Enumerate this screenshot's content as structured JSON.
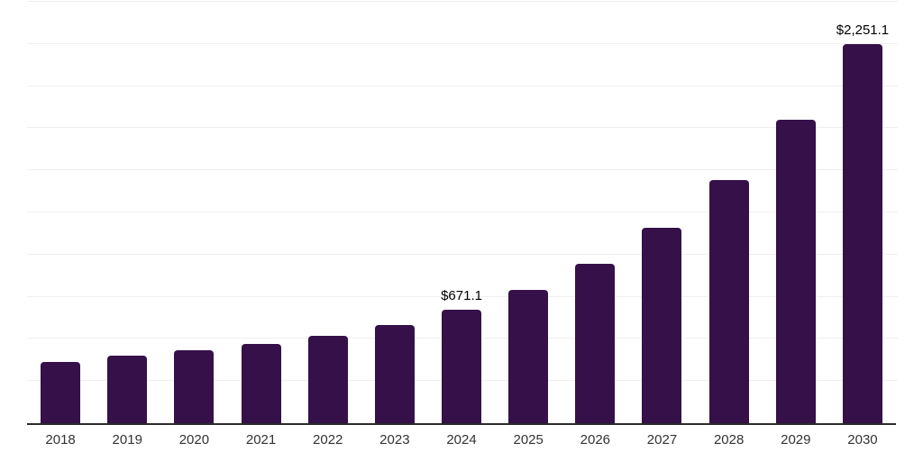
{
  "chart_data": {
    "type": "bar",
    "title": "",
    "xlabel": "",
    "ylabel": "",
    "categories": [
      "2018",
      "2019",
      "2020",
      "2021",
      "2022",
      "2023",
      "2024",
      "2025",
      "2026",
      "2027",
      "2028",
      "2029",
      "2030"
    ],
    "values": [
      366,
      403,
      435,
      472,
      520,
      584,
      671.1,
      792,
      947,
      1160,
      1443,
      1800,
      2251.1
    ],
    "bar_labels": [
      "",
      "",
      "",
      "",
      "",
      "",
      "$671.1",
      "",
      "",
      "",
      "",
      "",
      "$2,251.1"
    ],
    "ylim": [
      0,
      2500
    ],
    "grid_interval": 250,
    "grid": "horizontal-only",
    "legend_position": "none",
    "colors": {
      "bar": "#351049",
      "axis_line": "#2b2b2b",
      "gridline": "#efefef",
      "bar_label_text": "#000000",
      "tick_label_text": "#333333",
      "background": "#ffffff"
    }
  }
}
